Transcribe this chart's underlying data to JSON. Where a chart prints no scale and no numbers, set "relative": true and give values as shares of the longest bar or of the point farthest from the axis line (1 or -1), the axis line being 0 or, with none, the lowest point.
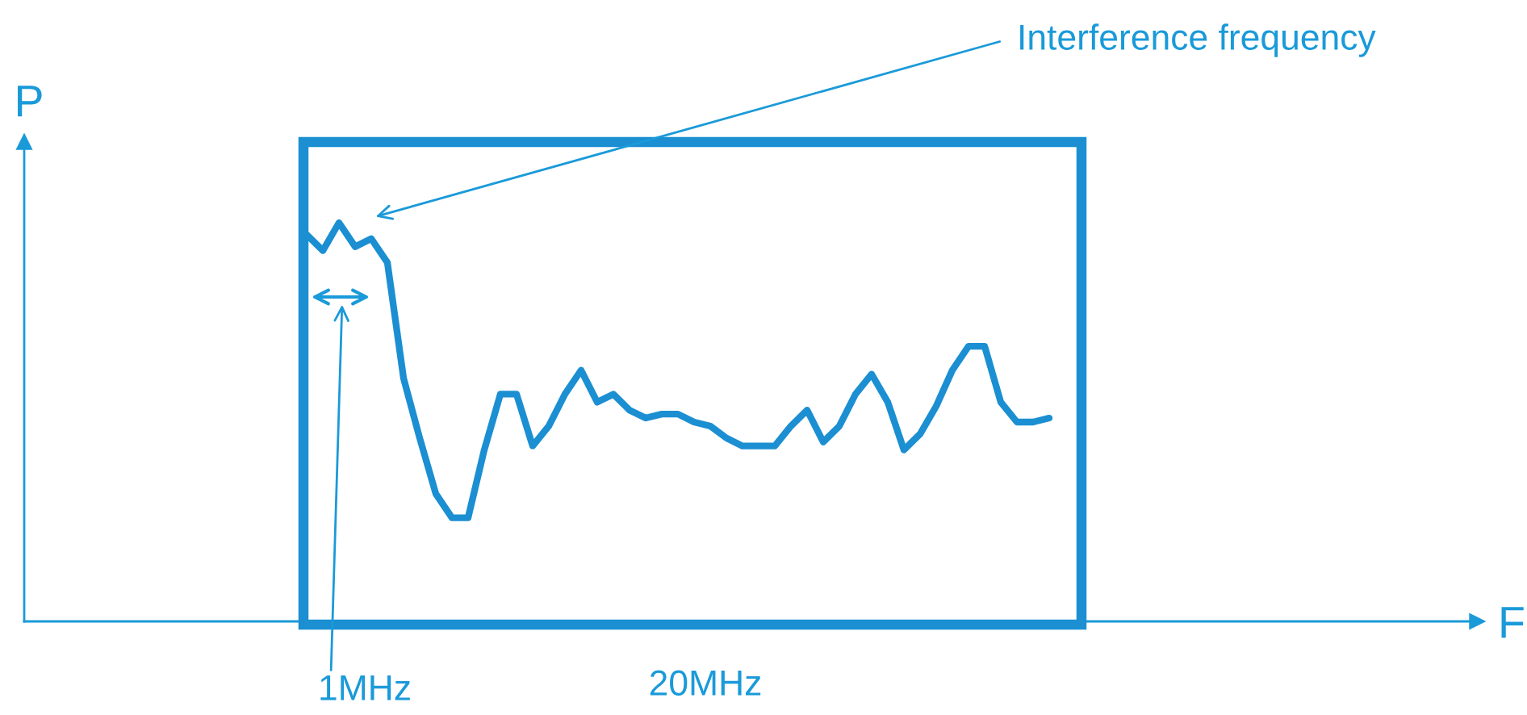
{
  "chart_data": {
    "type": "line",
    "relative": true,
    "tick_labels": false,
    "color": "#1b8fd2",
    "categories": [
      null,
      null,
      null,
      null,
      null,
      null,
      null,
      null,
      null,
      null,
      null,
      null,
      null,
      null,
      null,
      null,
      null,
      null,
      null,
      null,
      null,
      null,
      null,
      null,
      null,
      null,
      null,
      null,
      null,
      null,
      null,
      null,
      null,
      null,
      null,
      null,
      null,
      null,
      null,
      null,
      null,
      null,
      null,
      null,
      null,
      null,
      null
    ],
    "values": [
      0.97,
      0.93,
      1,
      0.94,
      0.96,
      0.9,
      0.61,
      0.46,
      0.32,
      0.26,
      0.26,
      0.43,
      0.57,
      0.57,
      0.44,
      0.49,
      0.57,
      0.63,
      0.55,
      0.57,
      0.53,
      0.51,
      0.52,
      0.52,
      0.5,
      0.49,
      0.46,
      0.44,
      0.44,
      0.44,
      0.49,
      0.53,
      0.45,
      0.49,
      0.57,
      0.62,
      0.55,
      0.43,
      0.47,
      0.54,
      0.63,
      0.69,
      0.69,
      0.55,
      0.5,
      0.5,
      0.51
    ],
    "annotations": [
      "Interference frequency",
      "1MHz",
      "20MHz",
      "F",
      "P"
    ]
  }
}
